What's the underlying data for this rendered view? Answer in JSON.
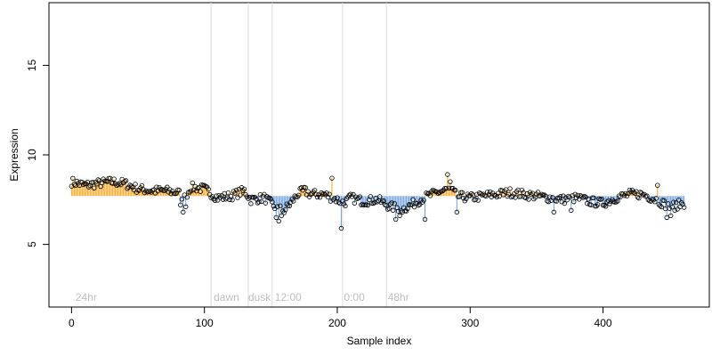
{
  "chart_data": {
    "type": "scatter",
    "xlabel": "Sample index",
    "ylabel": "Expression",
    "xlim": [
      -17,
      480
    ],
    "ylim": [
      1.5,
      18.5
    ],
    "x_ticks": [
      0,
      100,
      200,
      300,
      400
    ],
    "y_ticks": [
      5,
      10,
      15
    ],
    "baseline": 7.7,
    "region_lines": [
      105,
      133,
      151,
      204,
      237
    ],
    "region_labels": [
      {
        "text": "24hr",
        "x": 3
      },
      {
        "text": "dawn",
        "x": 107
      },
      {
        "text": "dusk",
        "x": 133
      },
      {
        "text": "12:00",
        "x": 153
      },
      {
        "text": "0:00",
        "x": 205
      },
      {
        "text": "48hr",
        "x": 238
      }
    ],
    "colors": {
      "above": "#f5a623",
      "below": "#6ea0dc",
      "line": "#d9d9d9",
      "label": "#bdbdbd"
    },
    "grid": false,
    "legend": "none",
    "n_points": 462,
    "anchors": [
      [
        0,
        8.5
      ],
      [
        5,
        8.4
      ],
      [
        10,
        8.3
      ],
      [
        20,
        8.4
      ],
      [
        30,
        8.5
      ],
      [
        40,
        8.4
      ],
      [
        50,
        8.1
      ],
      [
        60,
        8.0
      ],
      [
        70,
        8.0
      ],
      [
        80,
        7.9
      ],
      [
        85,
        7.6
      ],
      [
        90,
        8.2
      ],
      [
        100,
        8.1
      ],
      [
        110,
        7.6
      ],
      [
        120,
        7.7
      ],
      [
        130,
        8.0
      ],
      [
        135,
        7.5
      ],
      [
        145,
        7.6
      ],
      [
        150,
        7.3
      ],
      [
        155,
        7.0
      ],
      [
        160,
        6.9
      ],
      [
        165,
        7.3
      ],
      [
        170,
        7.8
      ],
      [
        175,
        8.0
      ],
      [
        180,
        7.8
      ],
      [
        190,
        7.8
      ],
      [
        200,
        7.5
      ],
      [
        205,
        7.3
      ],
      [
        210,
        7.6
      ],
      [
        220,
        7.4
      ],
      [
        230,
        7.5
      ],
      [
        240,
        7.1
      ],
      [
        250,
        7.0
      ],
      [
        258,
        7.3
      ],
      [
        265,
        7.6
      ],
      [
        275,
        7.9
      ],
      [
        285,
        8.1
      ],
      [
        290,
        7.7
      ],
      [
        300,
        7.6
      ],
      [
        310,
        7.7
      ],
      [
        320,
        7.8
      ],
      [
        330,
        7.9
      ],
      [
        340,
        7.8
      ],
      [
        350,
        7.7
      ],
      [
        360,
        7.6
      ],
      [
        370,
        7.5
      ],
      [
        380,
        7.6
      ],
      [
        390,
        7.4
      ],
      [
        400,
        7.3
      ],
      [
        410,
        7.6
      ],
      [
        420,
        7.8
      ],
      [
        430,
        7.8
      ],
      [
        440,
        7.5
      ],
      [
        450,
        7.1
      ],
      [
        461,
        7.3
      ]
    ],
    "spikes": [
      [
        82,
        7.2
      ],
      [
        84,
        6.8
      ],
      [
        86,
        7.1
      ],
      [
        154,
        6.5
      ],
      [
        156,
        6.3
      ],
      [
        158,
        6.6
      ],
      [
        196,
        8.7
      ],
      [
        203,
        5.9
      ],
      [
        244,
        6.4
      ],
      [
        247,
        6.6
      ],
      [
        249,
        6.8
      ],
      [
        266,
        6.4
      ],
      [
        283,
        8.9
      ],
      [
        285,
        8.5
      ],
      [
        290,
        6.8
      ],
      [
        363,
        6.8
      ],
      [
        376,
        6.9
      ],
      [
        441,
        8.3
      ],
      [
        448,
        6.5
      ],
      [
        451,
        6.6
      ],
      [
        454,
        6.9
      ]
    ]
  }
}
